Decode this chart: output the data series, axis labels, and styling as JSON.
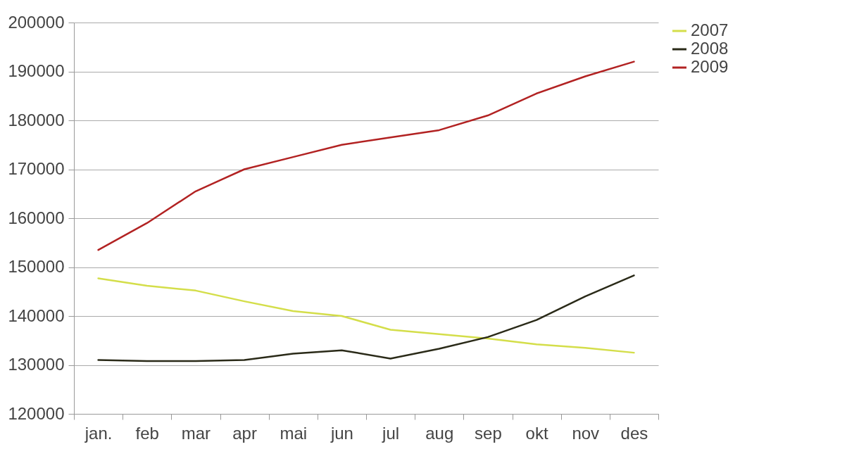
{
  "chart_data": {
    "type": "line",
    "categories": [
      "jan.",
      "feb",
      "mar",
      "apr",
      "mai",
      "jun",
      "jul",
      "aug",
      "sep",
      "okt",
      "nov",
      "des"
    ],
    "series": [
      {
        "name": "2007",
        "color": "#d4de4a",
        "values": [
          147700,
          146200,
          145200,
          143000,
          141000,
          140000,
          137200,
          136300,
          135400,
          134200,
          133500,
          132500
        ]
      },
      {
        "name": "2008",
        "color": "#2a2a18",
        "values": [
          131000,
          130800,
          130800,
          131000,
          132300,
          133000,
          131300,
          133300,
          135700,
          139200,
          144000,
          148300
        ]
      },
      {
        "name": "2009",
        "color": "#b22222",
        "values": [
          153500,
          159000,
          165500,
          170000,
          172500,
          175000,
          176500,
          178000,
          181000,
          185500,
          189000,
          192000
        ]
      }
    ],
    "ylim": [
      120000,
      200000
    ],
    "yticks": [
      120000,
      130000,
      140000,
      150000,
      160000,
      170000,
      180000,
      190000,
      200000
    ],
    "grid": "y",
    "legend": "right",
    "marker": "none",
    "line_style": "solid"
  }
}
